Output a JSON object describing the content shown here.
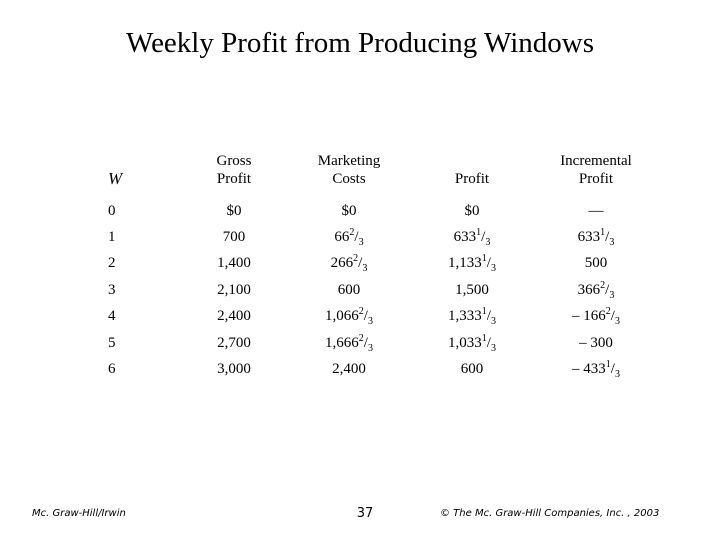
{
  "slide": {
    "title": "Weekly Profit from Producing Windows"
  },
  "table": {
    "headers": [
      [
        "W"
      ],
      [
        "Gross",
        "Profit"
      ],
      [
        "Marketing",
        "Costs"
      ],
      [
        "Profit"
      ],
      [
        "Incremental",
        "Profit"
      ]
    ],
    "rows": [
      [
        [
          {
            "t": "0"
          }
        ],
        [
          {
            "t": "$0"
          }
        ],
        [
          {
            "t": "$0"
          }
        ],
        [
          {
            "t": "$0"
          }
        ],
        [
          {
            "t": "—"
          }
        ]
      ],
      [
        [
          {
            "t": "1"
          }
        ],
        [
          {
            "t": "700"
          }
        ],
        [
          {
            "t": "66"
          },
          {
            "t": "2",
            "sup": true
          },
          {
            "t": "/"
          },
          {
            "t": "3",
            "sub": true
          }
        ],
        [
          {
            "t": "633"
          },
          {
            "t": "1",
            "sup": true
          },
          {
            "t": "/"
          },
          {
            "t": "3",
            "sub": true
          }
        ],
        [
          {
            "t": "633"
          },
          {
            "t": "1",
            "sup": true
          },
          {
            "t": "/"
          },
          {
            "t": "3",
            "sub": true
          }
        ]
      ],
      [
        [
          {
            "t": "2"
          }
        ],
        [
          {
            "t": "1,400"
          }
        ],
        [
          {
            "t": "266"
          },
          {
            "t": "2",
            "sup": true
          },
          {
            "t": "/"
          },
          {
            "t": "3",
            "sub": true
          }
        ],
        [
          {
            "t": "1,133"
          },
          {
            "t": "1",
            "sup": true
          },
          {
            "t": "/"
          },
          {
            "t": "3",
            "sub": true
          }
        ],
        [
          {
            "t": "500"
          }
        ]
      ],
      [
        [
          {
            "t": "3"
          }
        ],
        [
          {
            "t": "2,100"
          }
        ],
        [
          {
            "t": "600"
          }
        ],
        [
          {
            "t": "1,500"
          }
        ],
        [
          {
            "t": "366"
          },
          {
            "t": "2",
            "sup": true
          },
          {
            "t": "/"
          },
          {
            "t": "3",
            "sub": true
          }
        ]
      ],
      [
        [
          {
            "t": "4"
          }
        ],
        [
          {
            "t": "2,400"
          }
        ],
        [
          {
            "t": "1,066"
          },
          {
            "t": "2",
            "sup": true
          },
          {
            "t": "/"
          },
          {
            "t": "3",
            "sub": true
          }
        ],
        [
          {
            "t": "1,333"
          },
          {
            "t": "1",
            "sup": true
          },
          {
            "t": "/"
          },
          {
            "t": "3",
            "sub": true
          }
        ],
        [
          {
            "t": "– 166"
          },
          {
            "t": "2",
            "sup": true
          },
          {
            "t": "/"
          },
          {
            "t": "3",
            "sub": true
          }
        ]
      ],
      [
        [
          {
            "t": "5"
          }
        ],
        [
          {
            "t": "2,700"
          }
        ],
        [
          {
            "t": "1,666"
          },
          {
            "t": "2",
            "sup": true
          },
          {
            "t": "/"
          },
          {
            "t": "3",
            "sub": true
          }
        ],
        [
          {
            "t": "1,033"
          },
          {
            "t": "1",
            "sup": true
          },
          {
            "t": "/"
          },
          {
            "t": "3",
            "sub": true
          }
        ],
        [
          {
            "t": "– 300"
          }
        ]
      ],
      [
        [
          {
            "t": "6"
          }
        ],
        [
          {
            "t": "3,000"
          }
        ],
        [
          {
            "t": "2,400"
          }
        ],
        [
          {
            "t": "600"
          }
        ],
        [
          {
            "t": "– 433"
          },
          {
            "t": "1",
            "sup": true
          },
          {
            "t": "/"
          },
          {
            "t": "3",
            "sub": true
          }
        ]
      ]
    ]
  },
  "footer": {
    "publisher": "Mc. Graw-Hill/Irwin",
    "page_number": "37",
    "copyright": "© The Mc. Graw-Hill Companies, Inc. , 2003"
  }
}
